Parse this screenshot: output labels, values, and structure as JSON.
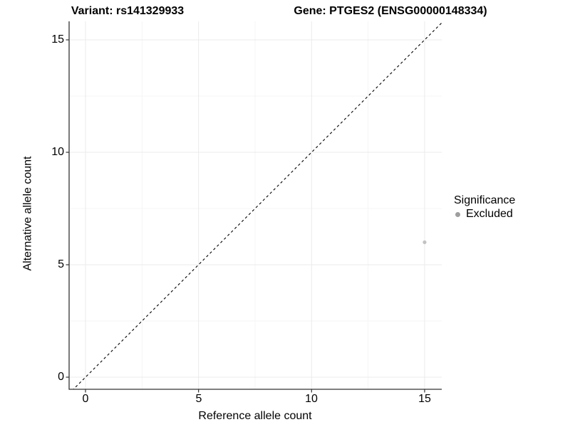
{
  "chart_data": {
    "type": "scatter",
    "title_left": "Variant: rs141329933",
    "title_right": "Gene: PTGES2 (ENSG00000148334)",
    "xlabel": "Reference allele count",
    "ylabel": "Alternative allele count",
    "xlim": [
      -0.75,
      15.75
    ],
    "ylim": [
      -0.55,
      15.8
    ],
    "x_ticks": [
      0,
      5,
      10,
      15
    ],
    "y_ticks": [
      0,
      5,
      10,
      15
    ],
    "x_minor_ticks": [
      2.5,
      7.5,
      12.5
    ],
    "y_minor_ticks": [
      2.5,
      7.5,
      12.5
    ],
    "grid": "major+minor",
    "legend_position": "right",
    "identity_line": {
      "slope": 1,
      "intercept": 0,
      "style": "dashed",
      "color": "#000000"
    },
    "series": [
      {
        "name": "Excluded",
        "color": "#c2c2c2",
        "marker": "circle",
        "points": [
          {
            "x": 15,
            "y": 6
          }
        ]
      }
    ],
    "legend": {
      "title": "Significance",
      "items": [
        {
          "label": "Excluded",
          "color": "#9e9e9e",
          "marker": "circle"
        }
      ]
    },
    "colors": {
      "grid_major": "#ebebeb",
      "grid_minor": "#f5f5f5",
      "axis_line": "#333333",
      "text": "#000000",
      "panel_background": "#ffffff"
    }
  }
}
